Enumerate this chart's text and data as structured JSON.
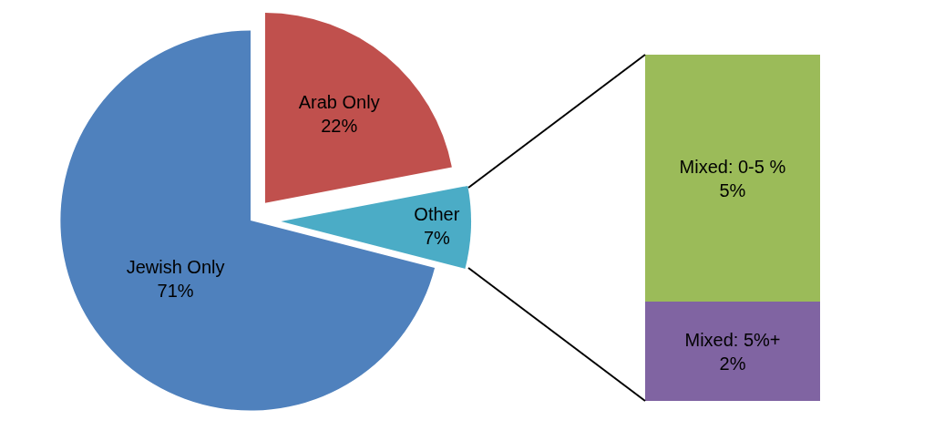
{
  "chart_data": [
    {
      "type": "pie",
      "categories": [
        "Arab Only",
        "Other",
        "Jewish Only"
      ],
      "values": [
        22,
        7,
        71
      ],
      "colors": [
        "#c0504d",
        "#4bacc6",
        "#4f81bd"
      ],
      "value_labels": [
        "22%",
        "7%",
        "71%"
      ]
    },
    {
      "type": "bar",
      "stacked": true,
      "categories": [
        null
      ],
      "series": [
        {
          "name": "Mixed: 5%+",
          "color": "#8064a2",
          "values": [
            2
          ],
          "value_labels": [
            "2%"
          ]
        },
        {
          "name": "Mixed: 0-5 %",
          "color": "#9bbb59",
          "values": [
            5
          ],
          "value_labels": [
            "5%"
          ]
        }
      ]
    }
  ]
}
